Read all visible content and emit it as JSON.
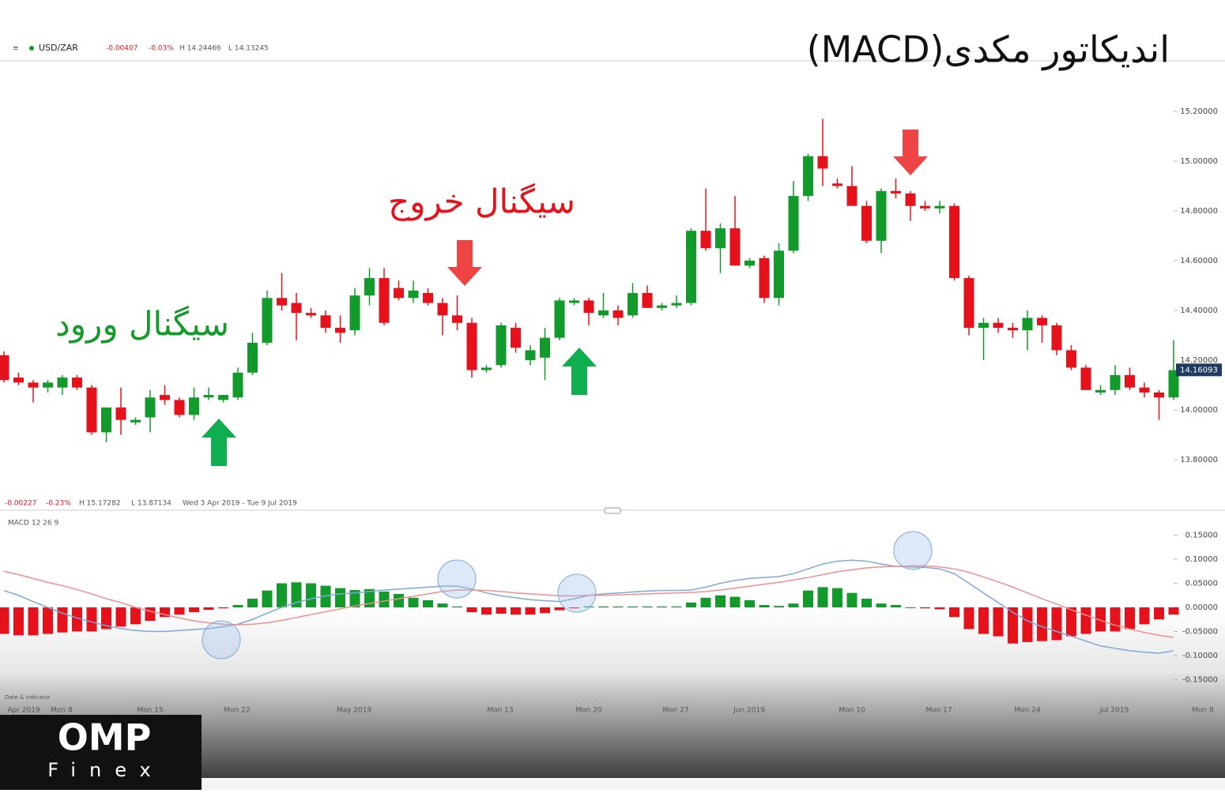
{
  "title": "اندیکاتور مکدی(MACD)",
  "annotations": {
    "exit": "سیگنال خروج",
    "entry": "سیگنال ورود"
  },
  "header": {
    "symbol": "USD/ZAR",
    "change": "-0.00407",
    "change_pct": "-0.03%",
    "high": "H 14.24466",
    "low": "L 14.13245"
  },
  "range_bar": {
    "change": "-0.00227",
    "change_pct": "-0.23%",
    "high": "H 15.17282",
    "low": "L 13.87134",
    "dates": "Wed 3 Apr 2019 - Tue 9 Jul 2019"
  },
  "date_indicator": "Date & Indicator",
  "logo": {
    "name": "OMP",
    "sub": "Finex"
  },
  "x_labels": [
    "Apr 2019",
    "Mon 8",
    "Mon 15",
    "Mon 22",
    "May 2019",
    "Mon 13",
    "Mon 20",
    "Mon 27",
    "Jun 2019",
    "Mon 10",
    "Mon 17",
    "Mon 24",
    "Jul 2019",
    "Mon 8"
  ],
  "chart_data": [
    {
      "type": "candlestick",
      "up_color": "#129a2a",
      "down_color": "#e5121c",
      "open": [
        14.22,
        14.13,
        14.11,
        14.09,
        14.09,
        14.13,
        14.09,
        13.91,
        14.01,
        13.95,
        13.97,
        14.06,
        14.04,
        13.98,
        14.05,
        14.04,
        14.05,
        14.15,
        14.27,
        14.45,
        14.43,
        14.39,
        14.38,
        14.33,
        14.32,
        14.46,
        14.53,
        14.49,
        14.45,
        14.47,
        14.43,
        14.38,
        14.35,
        14.16,
        14.18,
        14.33,
        14.2,
        14.21,
        14.29,
        14.43,
        14.44,
        14.38,
        14.4,
        14.38,
        14.47,
        14.41,
        14.42,
        14.43,
        14.72,
        14.65,
        14.73,
        14.58,
        14.61,
        14.45,
        14.64,
        14.86,
        15.02,
        14.91,
        14.9,
        14.82,
        14.68,
        14.88,
        14.87,
        14.82,
        14.81,
        14.82,
        14.53,
        14.33,
        14.35,
        14.33,
        14.32,
        14.37,
        14.34,
        14.24,
        14.17,
        14.07,
        14.08,
        14.14,
        14.09,
        14.07,
        14.05
      ],
      "high": [
        14.235,
        14.15,
        14.12,
        14.12,
        14.14,
        14.14,
        14.1,
        14.0,
        14.09,
        13.97,
        14.08,
        14.1,
        14.05,
        14.09,
        14.09,
        14.06,
        14.17,
        14.31,
        14.48,
        14.55,
        14.47,
        14.41,
        14.4,
        14.38,
        14.49,
        14.57,
        14.57,
        14.52,
        14.52,
        14.49,
        14.45,
        14.46,
        14.37,
        14.18,
        14.35,
        14.35,
        14.26,
        14.33,
        14.45,
        14.45,
        14.45,
        14.47,
        14.42,
        14.51,
        14.5,
        14.43,
        14.46,
        14.73,
        14.89,
        14.75,
        14.86,
        14.61,
        14.62,
        14.67,
        14.92,
        15.03,
        15.17,
        14.93,
        14.98,
        14.84,
        14.89,
        14.93,
        14.88,
        14.84,
        14.84,
        14.83,
        14.54,
        14.37,
        14.37,
        14.35,
        14.4,
        14.38,
        14.35,
        14.26,
        14.18,
        14.1,
        14.18,
        14.17,
        14.11,
        14.08,
        14.28
      ],
      "low": [
        14.11,
        14.1,
        14.03,
        14.07,
        14.06,
        14.08,
        13.9,
        13.87,
        13.9,
        13.94,
        13.91,
        14.02,
        13.97,
        13.96,
        14.04,
        14.03,
        14.04,
        14.14,
        14.26,
        14.4,
        14.28,
        14.37,
        14.31,
        14.27,
        14.3,
        14.42,
        14.34,
        14.44,
        14.43,
        14.42,
        14.3,
        14.32,
        14.13,
        14.15,
        14.17,
        14.23,
        14.18,
        14.12,
        14.28,
        14.42,
        14.34,
        14.37,
        14.34,
        14.37,
        14.41,
        14.4,
        14.41,
        14.42,
        14.64,
        14.55,
        14.58,
        14.57,
        14.43,
        14.42,
        14.63,
        14.84,
        14.9,
        14.89,
        14.82,
        14.67,
        14.63,
        14.85,
        14.76,
        14.8,
        14.79,
        14.52,
        14.3,
        14.2,
        14.31,
        14.29,
        14.24,
        14.27,
        14.22,
        14.16,
        14.08,
        14.06,
        14.06,
        14.08,
        14.05,
        13.96,
        14.04
      ],
      "close": [
        14.12,
        14.11,
        14.09,
        14.11,
        14.13,
        14.09,
        13.91,
        14.01,
        13.96,
        13.96,
        14.05,
        14.04,
        13.98,
        14.05,
        14.06,
        14.06,
        14.15,
        14.27,
        14.45,
        14.42,
        14.39,
        14.38,
        14.33,
        14.31,
        14.46,
        14.53,
        14.35,
        14.45,
        14.48,
        14.43,
        14.38,
        14.35,
        14.16,
        14.17,
        14.34,
        14.25,
        14.24,
        14.29,
        14.44,
        14.44,
        14.39,
        14.4,
        14.37,
        14.47,
        14.41,
        14.42,
        14.43,
        14.72,
        14.65,
        14.73,
        14.58,
        14.6,
        14.45,
        14.64,
        14.86,
        15.02,
        14.97,
        14.9,
        14.82,
        14.68,
        14.88,
        14.87,
        14.82,
        14.81,
        14.82,
        14.53,
        14.33,
        14.35,
        14.33,
        14.32,
        14.37,
        14.34,
        14.24,
        14.17,
        14.08,
        14.08,
        14.14,
        14.09,
        14.07,
        14.05,
        14.16
      ],
      "last_price": 14.16093,
      "ylim": [
        13.73,
        15.3
      ],
      "yticks": [
        {
          "value": 15.2,
          "label": "15.20000"
        },
        {
          "value": 15.0,
          "label": "15.00000"
        },
        {
          "value": 14.8,
          "label": "14.80000"
        },
        {
          "value": 14.6,
          "label": "14.60000"
        },
        {
          "value": 14.4,
          "label": "14.40000"
        },
        {
          "value": 14.2,
          "label": "14.20000"
        },
        {
          "value": 14.0,
          "label": "14.00000"
        },
        {
          "value": 13.8,
          "label": "13.80000"
        }
      ]
    },
    {
      "type": "macd",
      "label": "MACD 12 26 9",
      "series": [
        {
          "name": "MACD",
          "color": "#7fa8d6",
          "values": [
            0.035,
            0.025,
            0.012,
            0.0,
            -0.012,
            -0.022,
            -0.03,
            -0.038,
            -0.044,
            -0.048,
            -0.05,
            -0.05,
            -0.048,
            -0.046,
            -0.044,
            -0.04,
            -0.035,
            -0.025,
            -0.012,
            0.0,
            0.01,
            0.018,
            0.024,
            0.028,
            0.03,
            0.033,
            0.036,
            0.038,
            0.04,
            0.042,
            0.044,
            0.044,
            0.038,
            0.03,
            0.024,
            0.02,
            0.016,
            0.014,
            0.012,
            0.018,
            0.025,
            0.028,
            0.03,
            0.032,
            0.034,
            0.035,
            0.035,
            0.036,
            0.042,
            0.05,
            0.056,
            0.06,
            0.062,
            0.064,
            0.07,
            0.08,
            0.09,
            0.096,
            0.098,
            0.096,
            0.09,
            0.085,
            0.084,
            0.083,
            0.08,
            0.07,
            0.05,
            0.03,
            0.01,
            -0.01,
            -0.028,
            -0.04,
            -0.05,
            -0.06,
            -0.07,
            -0.08,
            -0.085,
            -0.09,
            -0.093,
            -0.095,
            -0.09
          ]
        },
        {
          "name": "Signal",
          "color": "#ef8f8f",
          "values": [
            0.075,
            0.068,
            0.06,
            0.052,
            0.045,
            0.037,
            0.028,
            0.018,
            0.01,
            0.0,
            -0.008,
            -0.015,
            -0.022,
            -0.028,
            -0.032,
            -0.035,
            -0.036,
            -0.035,
            -0.032,
            -0.027,
            -0.021,
            -0.015,
            -0.009,
            -0.003,
            0.003,
            0.008,
            0.013,
            0.018,
            0.023,
            0.028,
            0.033,
            0.036,
            0.036,
            0.035,
            0.033,
            0.03,
            0.028,
            0.026,
            0.024,
            0.024,
            0.025,
            0.025,
            0.026,
            0.027,
            0.028,
            0.029,
            0.03,
            0.031,
            0.033,
            0.036,
            0.04,
            0.044,
            0.048,
            0.052,
            0.057,
            0.062,
            0.068,
            0.074,
            0.078,
            0.082,
            0.084,
            0.085,
            0.086,
            0.086,
            0.084,
            0.08,
            0.073,
            0.063,
            0.053,
            0.042,
            0.03,
            0.018,
            0.007,
            -0.005,
            -0.016,
            -0.027,
            -0.037,
            -0.045,
            -0.052,
            -0.058,
            -0.062
          ]
        }
      ],
      "histogram": {
        "up_color": "#129a2a",
        "down_color": "#e5121c",
        "values": [
          -0.055,
          -0.058,
          -0.058,
          -0.055,
          -0.052,
          -0.05,
          -0.05,
          -0.045,
          -0.04,
          -0.035,
          -0.028,
          -0.02,
          -0.015,
          -0.01,
          -0.005,
          -0.002,
          0.005,
          0.018,
          0.035,
          0.05,
          0.052,
          0.05,
          0.045,
          0.04,
          0.036,
          0.038,
          0.033,
          0.028,
          0.02,
          0.015,
          0.008,
          0.002,
          -0.01,
          -0.015,
          -0.013,
          -0.015,
          -0.015,
          -0.012,
          -0.006,
          -0.002,
          0.002,
          0.002,
          0.002,
          0.002,
          0.002,
          0.002,
          0.002,
          0.01,
          0.02,
          0.025,
          0.022,
          0.015,
          0.005,
          0.003,
          0.008,
          0.035,
          0.042,
          0.04,
          0.03,
          0.018,
          0.008,
          0.005,
          0,
          -0.002,
          -0.004,
          -0.02,
          -0.045,
          -0.055,
          -0.06,
          -0.075,
          -0.072,
          -0.07,
          -0.068,
          -0.06,
          -0.055,
          -0.05,
          -0.05,
          -0.045,
          -0.035,
          -0.025,
          -0.015
        ]
      },
      "ylim": [
        -0.165,
        0.175
      ],
      "yticks": [
        {
          "value": 0.15,
          "label": "0.15000"
        },
        {
          "value": 0.1,
          "label": "0.10000"
        },
        {
          "value": 0.05,
          "label": "0.05000"
        },
        {
          "value": 0,
          "label": "0.00000"
        },
        {
          "value": -0.05,
          "label": "-0.05000"
        },
        {
          "value": -0.1,
          "label": "-0.10000"
        },
        {
          "value": -0.15,
          "label": "-0.15000"
        }
      ]
    }
  ]
}
